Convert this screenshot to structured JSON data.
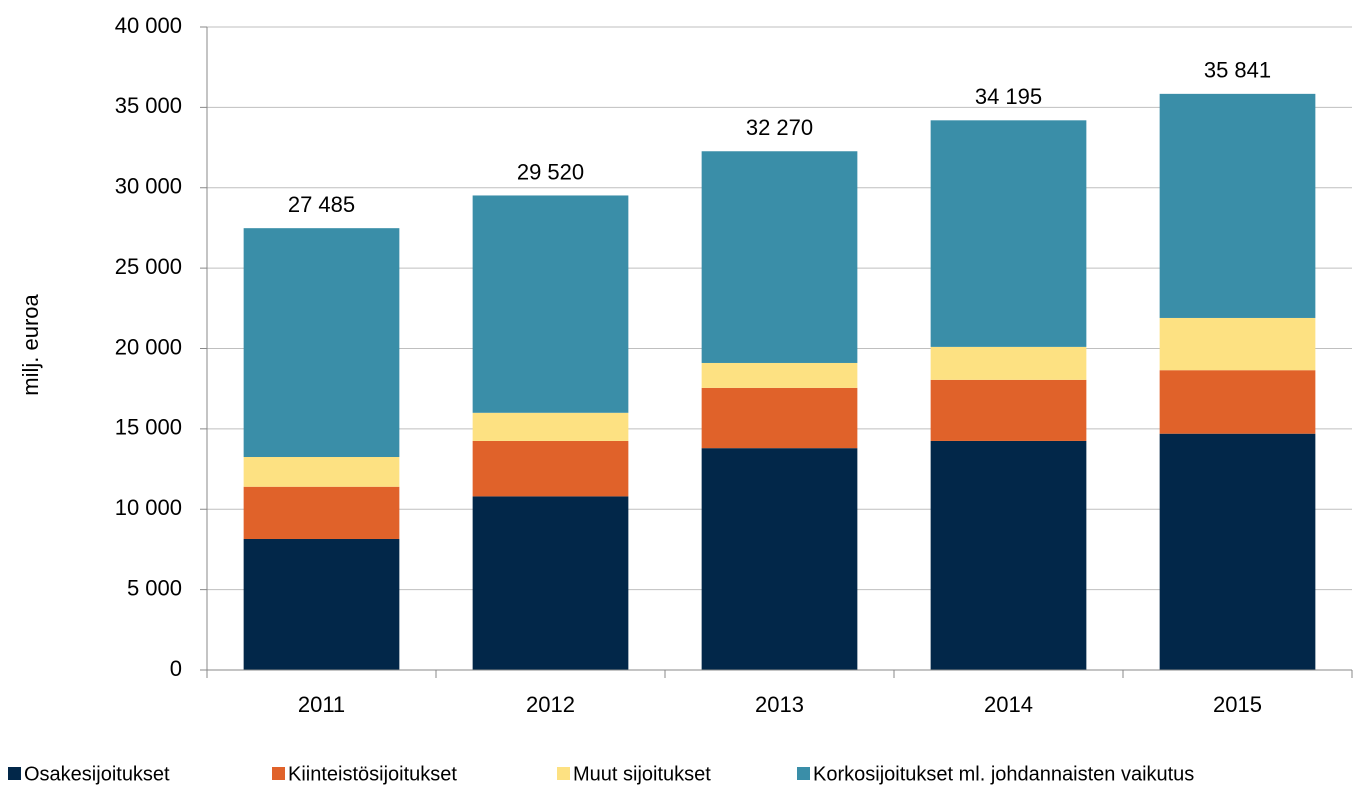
{
  "chart_data": {
    "type": "stacked_bar",
    "y_label": "milj. euroa",
    "categories": [
      "2011",
      "2012",
      "2013",
      "2014",
      "2015"
    ],
    "series": [
      {
        "name": "Osakesijoitukset",
        "color": "#022749",
        "values": [
          8150,
          10800,
          13800,
          14250,
          14700
        ]
      },
      {
        "name": "Kiinteistösijoitukset",
        "color": "#e0622a",
        "values": [
          3250,
          3450,
          3750,
          3800,
          3950
        ]
      },
      {
        "name": "Muut sijoitukset",
        "color": "#fde182",
        "values": [
          1850,
          1750,
          1550,
          2050,
          3250
        ]
      },
      {
        "name": "Korkosijoitukset ml. johdannaisten vaikutus",
        "color": "#3a8ea8",
        "values": [
          14235,
          13520,
          13170,
          14095,
          13941
        ]
      }
    ],
    "totals": {
      "values": [
        27485,
        29520,
        32270,
        34195,
        35841
      ],
      "value_labels": [
        "27 485",
        "29 520",
        "32 270",
        "34 195",
        "35 841"
      ]
    },
    "ylim": [
      0,
      40000
    ],
    "yticks": [
      0,
      {
        "value": 5000,
        "label": "5 000"
      },
      {
        "value": 10000,
        "label": "10 000"
      },
      {
        "value": 15000,
        "label": "15 000"
      },
      {
        "value": 20000,
        "label": "20 000"
      },
      {
        "value": 25000,
        "label": "25 000"
      },
      {
        "value": 30000,
        "label": "30 000"
      },
      {
        "value": 35000,
        "label": "35 000"
      },
      {
        "value": 40000,
        "label": "40 000"
      }
    ],
    "grid": true,
    "legend": "bottom"
  }
}
